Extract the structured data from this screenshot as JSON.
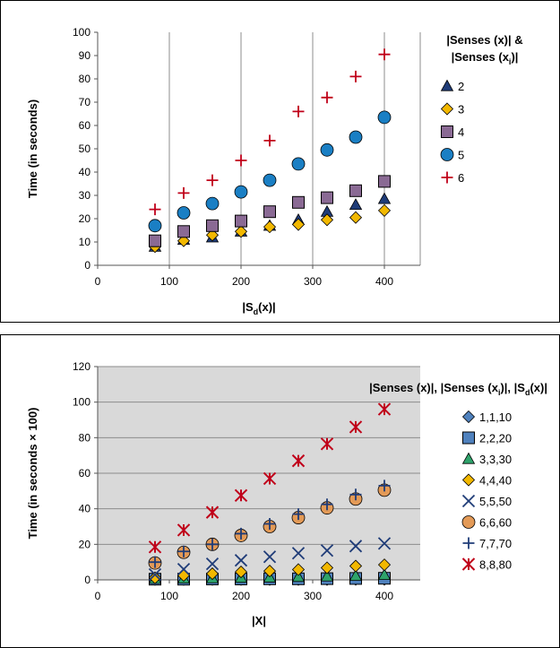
{
  "chart_data": [
    {
      "type": "scatter",
      "ylabel": "Time (in seconds)",
      "xlabel_main": "|S",
      "xlabel_sub": "d",
      "xlabel_end": "(x)|",
      "xlim": [
        0,
        450
      ],
      "ylim": [
        0,
        100
      ],
      "xticks": [
        0,
        100,
        200,
        300,
        400
      ],
      "yticks": [
        0,
        10,
        20,
        30,
        40,
        50,
        60,
        70,
        80,
        90,
        100
      ],
      "grid": "vertical",
      "legend_title_line1": "|Senses (x)| &",
      "legend_title_line2_main": "|Senses (x",
      "legend_title_line2_sub": "i",
      "legend_title_line2_end": ")|",
      "legend_placement": "right",
      "x": [
        80,
        120,
        160,
        200,
        240,
        280,
        320,
        360,
        400
      ],
      "series": [
        {
          "name": "2",
          "marker": "triangle",
          "color": "#1f3c78",
          "values": [
            8,
            11,
            12,
            14.5,
            17,
            19.5,
            23,
            26,
            28.5
          ]
        },
        {
          "name": "3",
          "marker": "diamond",
          "color": "#f2b800",
          "values": [
            8,
            10.5,
            13,
            14.5,
            16.5,
            17.5,
            19.5,
            20.5,
            23.5
          ]
        },
        {
          "name": "4",
          "marker": "square",
          "color": "#8a6a94",
          "values": [
            10.5,
            14.5,
            17,
            19,
            23,
            27,
            29,
            32,
            36
          ]
        },
        {
          "name": "5",
          "marker": "circle",
          "color": "#1a7fc4",
          "values": [
            17,
            22.5,
            26.5,
            31.5,
            36.5,
            43.5,
            49.5,
            55,
            63.5
          ]
        },
        {
          "name": "6",
          "marker": "plus",
          "color": "#c0001a",
          "values": [
            24,
            31,
            36.5,
            45,
            53.5,
            66,
            72,
            81,
            90.5
          ]
        }
      ]
    },
    {
      "type": "scatter",
      "ylabel": "Time (in seconds × 100)",
      "xlabel_main": "|X|",
      "xlim": [
        0,
        450
      ],
      "ylim": [
        0,
        120
      ],
      "xticks": [
        0,
        100,
        200,
        300,
        400
      ],
      "yticks": [
        0,
        20,
        40,
        60,
        80,
        100,
        120
      ],
      "grid": "horizontal",
      "plot_background": "#d9d9d9",
      "legend_title_part1": "|Senses (x)|, |Senses (x",
      "legend_title_sub1": "i",
      "legend_title_part2": ")|, |S",
      "legend_title_sub2": "d",
      "legend_title_part3": "(x)|",
      "legend_placement": "right",
      "x": [
        80,
        120,
        160,
        200,
        240,
        280,
        320,
        360,
        400
      ],
      "series": [
        {
          "name": "1,1,10",
          "marker": "diamond",
          "color": "#4f81bd",
          "values": [
            0.2,
            0.2,
            0.2,
            0.2,
            0.2,
            0.2,
            0.2,
            0.3,
            0.3
          ]
        },
        {
          "name": "2,2,20",
          "marker": "square",
          "color": "#4f81bd",
          "values": [
            0.4,
            0.4,
            0.5,
            0.5,
            0.6,
            0.6,
            0.7,
            0.8,
            0.9
          ]
        },
        {
          "name": "3,3,30",
          "marker": "triangle",
          "color": "#2ea36b",
          "values": [
            0.6,
            0.8,
            1.0,
            1.2,
            1.4,
            1.7,
            2.0,
            2.3,
            2.8
          ]
        },
        {
          "name": "4,4,40",
          "marker": "diamond",
          "color": "#f2b800",
          "values": [
            1.2,
            2.5,
            3.5,
            4.5,
            5.0,
            5.8,
            6.8,
            7.8,
            8.5
          ]
        },
        {
          "name": "5,5,50",
          "marker": "x",
          "color": "#1f3c78",
          "values": [
            3,
            6,
            9,
            11,
            13,
            15,
            16.5,
            19,
            20.5
          ]
        },
        {
          "name": "6,6,60",
          "marker": "circle",
          "color": "#e39a57",
          "values": [
            9.5,
            15.5,
            20,
            25,
            30,
            35,
            40.5,
            45.5,
            50.5
          ]
        },
        {
          "name": "7,7,70",
          "marker": "plus",
          "color": "#1f3c78",
          "values": [
            10,
            16,
            20,
            26,
            31.5,
            37,
            42.5,
            48,
            53
          ]
        },
        {
          "name": "8,8,80",
          "marker": "star",
          "color": "#c0001a",
          "values": [
            18.5,
            28,
            38,
            47.5,
            57,
            67,
            76.5,
            86,
            96
          ]
        }
      ]
    }
  ]
}
